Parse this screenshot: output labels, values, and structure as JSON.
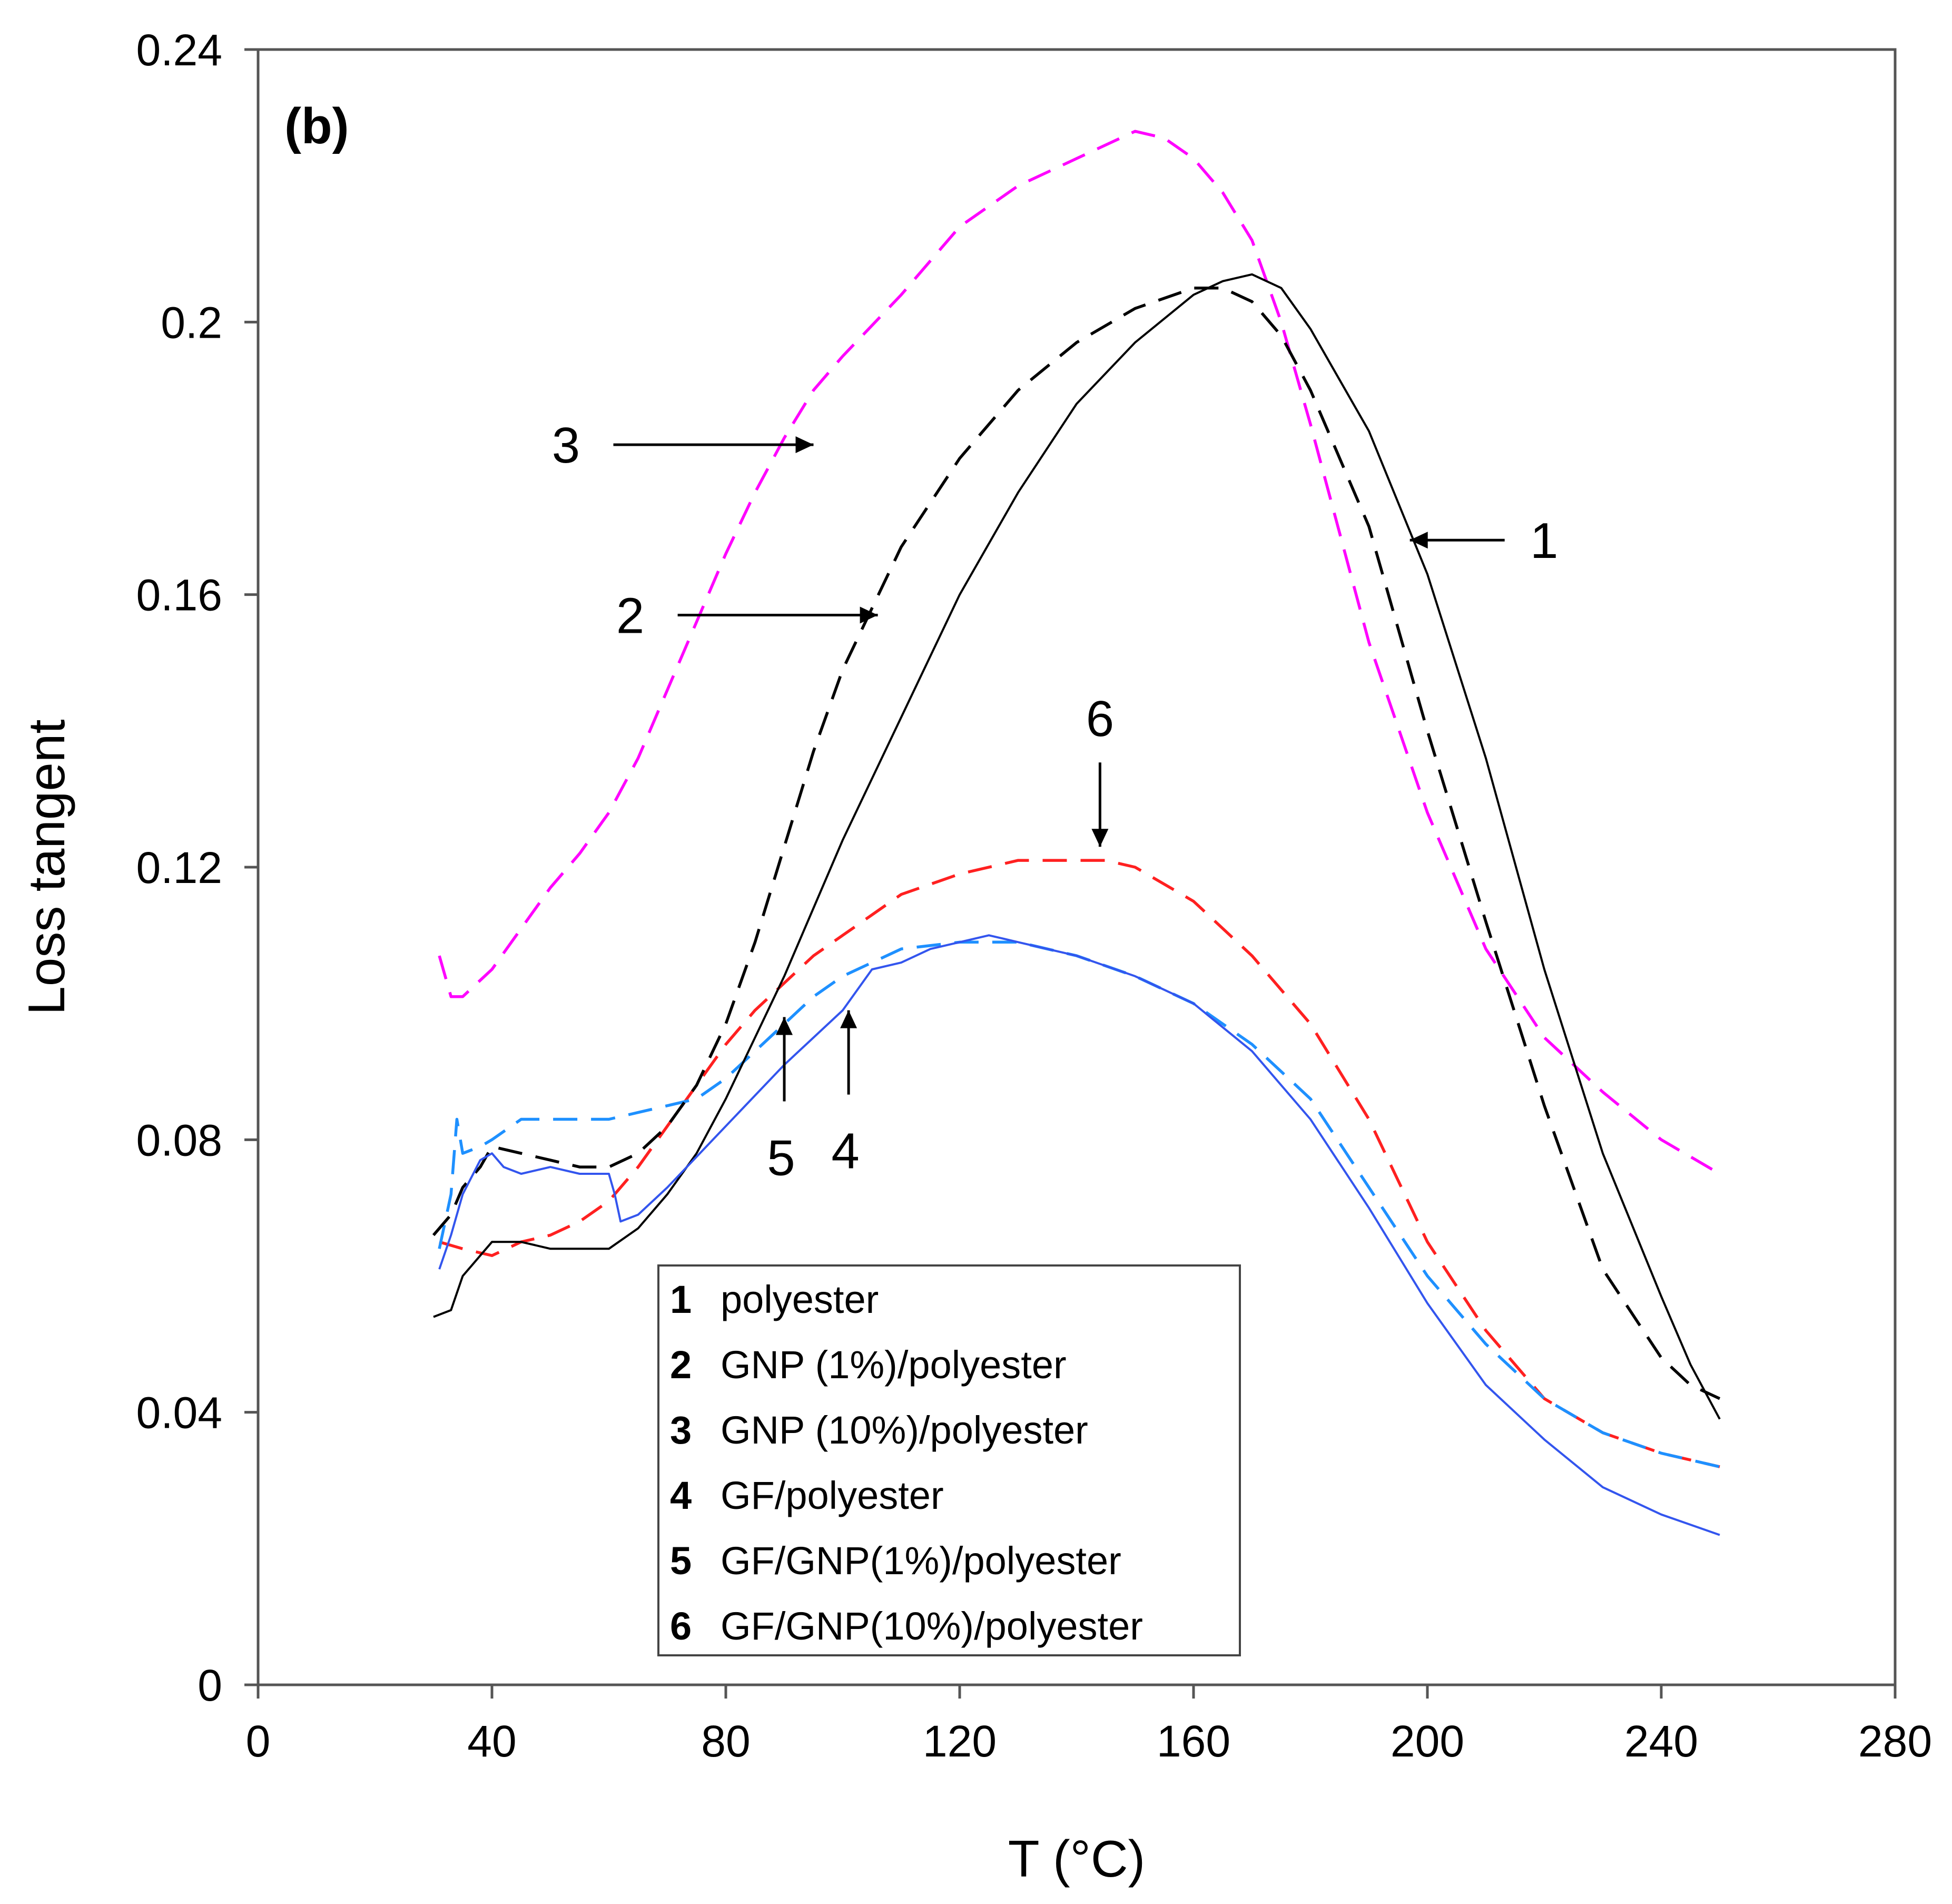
{
  "chart_data": {
    "type": "line",
    "panel_label": "(b)",
    "xlabel": "T (°C)",
    "ylabel": "Loss tangent",
    "xlim": [
      0,
      280
    ],
    "ylim": [
      0,
      0.24
    ],
    "xticks": [
      0,
      40,
      80,
      120,
      160,
      200,
      240,
      280
    ],
    "yticks": [
      0,
      0.04,
      0.08,
      0.12,
      0.16,
      0.2,
      0.24
    ],
    "xtick_labels": [
      "0",
      "40",
      "80",
      "120",
      "160",
      "200",
      "240",
      "280"
    ],
    "ytick_labels": [
      "0",
      "0.04",
      "0.08",
      "0.12",
      "0.16",
      "0.2",
      "0.24"
    ],
    "grid": false,
    "legend_position": "bottom-center",
    "series": [
      {
        "id": "1",
        "name": "polyester",
        "color": "#000000",
        "style": "solid",
        "x": [
          30,
          33,
          35,
          38,
          40,
          45,
          50,
          55,
          60,
          65,
          70,
          75,
          80,
          85,
          90,
          95,
          100,
          110,
          120,
          130,
          140,
          150,
          160,
          165,
          170,
          175,
          180,
          190,
          200,
          210,
          220,
          230,
          240,
          245,
          250
        ],
        "y": [
          0.054,
          0.055,
          0.06,
          0.063,
          0.065,
          0.065,
          0.064,
          0.064,
          0.064,
          0.067,
          0.072,
          0.078,
          0.086,
          0.095,
          0.104,
          0.114,
          0.124,
          0.142,
          0.16,
          0.175,
          0.188,
          0.197,
          0.204,
          0.206,
          0.207,
          0.205,
          0.199,
          0.184,
          0.163,
          0.136,
          0.105,
          0.078,
          0.057,
          0.047,
          0.039
        ]
      },
      {
        "id": "2",
        "name": "GNP (1%)/polyester",
        "color": "#000000",
        "style": "dash",
        "x": [
          30,
          33,
          35,
          38,
          40,
          45,
          50,
          55,
          60,
          65,
          70,
          75,
          80,
          85,
          90,
          95,
          100,
          105,
          110,
          120,
          130,
          140,
          150,
          160,
          165,
          170,
          175,
          180,
          190,
          200,
          210,
          220,
          230,
          240,
          245,
          250
        ],
        "y": [
          0.066,
          0.069,
          0.073,
          0.076,
          0.079,
          0.078,
          0.077,
          0.076,
          0.076,
          0.078,
          0.082,
          0.088,
          0.097,
          0.109,
          0.123,
          0.137,
          0.149,
          0.158,
          0.167,
          0.18,
          0.19,
          0.197,
          0.202,
          0.205,
          0.205,
          0.203,
          0.198,
          0.19,
          0.17,
          0.14,
          0.112,
          0.085,
          0.061,
          0.048,
          0.044,
          0.042
        ]
      },
      {
        "id": "3",
        "name": "GNP (10%)/polyester",
        "color": "#ff00ff",
        "style": "dash",
        "x": [
          31,
          33,
          35,
          40,
          45,
          50,
          55,
          60,
          65,
          70,
          75,
          80,
          85,
          90,
          95,
          100,
          110,
          120,
          130,
          140,
          150,
          155,
          160,
          165,
          170,
          175,
          180,
          190,
          200,
          210,
          220,
          230,
          240,
          250
        ],
        "y": [
          0.107,
          0.101,
          0.101,
          0.105,
          0.111,
          0.117,
          0.122,
          0.128,
          0.136,
          0.146,
          0.156,
          0.166,
          0.175,
          0.183,
          0.19,
          0.195,
          0.204,
          0.214,
          0.22,
          0.224,
          0.228,
          0.227,
          0.224,
          0.219,
          0.212,
          0.2,
          0.185,
          0.153,
          0.128,
          0.108,
          0.095,
          0.087,
          0.08,
          0.075
        ]
      },
      {
        "id": "4",
        "name": "GF/polyester",
        "color": "#3355ee",
        "style": "solid",
        "x": [
          31,
          33,
          35,
          38,
          40,
          42,
          45,
          50,
          55,
          60,
          61,
          62,
          65,
          70,
          80,
          90,
          100,
          105,
          110,
          115,
          120,
          125,
          130,
          140,
          150,
          160,
          170,
          180,
          190,
          200,
          210,
          220,
          230,
          240,
          250
        ],
        "y": [
          0.061,
          0.066,
          0.072,
          0.077,
          0.078,
          0.076,
          0.075,
          0.076,
          0.075,
          0.075,
          0.072,
          0.068,
          0.069,
          0.073,
          0.082,
          0.091,
          0.099,
          0.105,
          0.106,
          0.108,
          0.109,
          0.11,
          0.109,
          0.107,
          0.104,
          0.1,
          0.093,
          0.083,
          0.07,
          0.056,
          0.044,
          0.036,
          0.029,
          0.025,
          0.022
        ]
      },
      {
        "id": "5",
        "name": "GF/GNP(1%)/polyester",
        "color": "#1e90ff",
        "style": "dash",
        "x": [
          31,
          33,
          34,
          35,
          38,
          40,
          45,
          50,
          55,
          60,
          65,
          70,
          75,
          80,
          85,
          90,
          95,
          100,
          110,
          120,
          130,
          140,
          150,
          160,
          170,
          180,
          190,
          200,
          210,
          220,
          230,
          240,
          250
        ],
        "y": [
          0.064,
          0.072,
          0.083,
          0.078,
          0.079,
          0.08,
          0.083,
          0.083,
          0.083,
          0.083,
          0.084,
          0.085,
          0.086,
          0.089,
          0.093,
          0.097,
          0.101,
          0.104,
          0.108,
          0.109,
          0.109,
          0.107,
          0.104,
          0.1,
          0.094,
          0.086,
          0.073,
          0.06,
          0.05,
          0.042,
          0.037,
          0.034,
          0.032
        ]
      },
      {
        "id": "6",
        "name": "GF/GNP(10%)/polyester",
        "color": "#ff2020",
        "style": "dash",
        "x": [
          31,
          35,
          40,
          45,
          50,
          55,
          60,
          65,
          70,
          75,
          80,
          85,
          90,
          95,
          100,
          110,
          120,
          130,
          140,
          145,
          150,
          160,
          170,
          180,
          190,
          200,
          210,
          220,
          230,
          240,
          250
        ],
        "y": [
          0.065,
          0.064,
          0.063,
          0.065,
          0.066,
          0.068,
          0.071,
          0.076,
          0.082,
          0.088,
          0.094,
          0.099,
          0.103,
          0.107,
          0.11,
          0.116,
          0.119,
          0.121,
          0.121,
          0.121,
          0.12,
          0.115,
          0.107,
          0.097,
          0.083,
          0.065,
          0.052,
          0.042,
          0.037,
          0.034,
          0.032
        ]
      }
    ],
    "annotations": [
      {
        "label": "1",
        "arrow_tip": [
          197,
          0.168
        ],
        "direction": "left"
      },
      {
        "label": "2",
        "arrow_tip": [
          106,
          0.157
        ],
        "direction": "right"
      },
      {
        "label": "3",
        "arrow_tip": [
          95,
          0.182
        ],
        "direction": "right"
      },
      {
        "label": "4",
        "arrow_tip": [
          101,
          0.099
        ],
        "direction": "up"
      },
      {
        "label": "5",
        "arrow_tip": [
          90,
          0.098
        ],
        "direction": "up"
      },
      {
        "label": "6",
        "arrow_tip": [
          144,
          0.123
        ],
        "direction": "down"
      }
    ]
  }
}
